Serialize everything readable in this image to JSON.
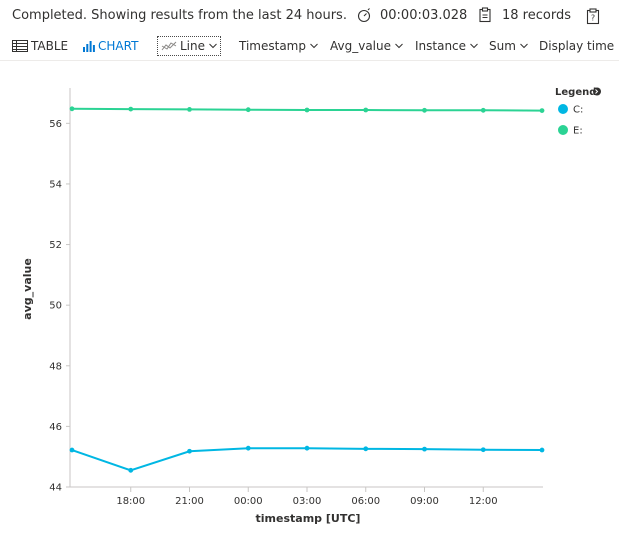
{
  "status": {
    "message": "Completed. Showing results from the last 24 hours.",
    "duration": "00:00:03.028",
    "records": "18 records",
    "timer_icon": "stopwatch-icon",
    "records_icon": "clipboard-icon",
    "copy_icon": "clipboard-copy-icon"
  },
  "toolbar": {
    "table_label": "TABLE",
    "chart_label": "CHART",
    "chart_type": "Line",
    "x_column": "Timestamp",
    "y_column": "Avg_value",
    "split_by": "Instance",
    "aggregation": "Sum",
    "display_time": "Display time",
    "accent_color": "#0078d4"
  },
  "chart_data": {
    "type": "line",
    "xlabel": "timestamp [UTC]",
    "ylabel": "avg_value",
    "x_ticks": [
      "18:00",
      "21:00",
      "00:00",
      "03:00",
      "06:00",
      "09:00",
      "12:00"
    ],
    "y_ticks": [
      44,
      46,
      48,
      50,
      52,
      54,
      56
    ],
    "ylim": [
      44,
      57.1
    ],
    "x": [
      "15:00",
      "18:00",
      "21:00",
      "00:00",
      "03:00",
      "06:00",
      "09:00",
      "12:00",
      "15:00"
    ],
    "legend_title": "Legend",
    "legend_position": "top-right",
    "grid": false,
    "series": [
      {
        "name": "C:",
        "color": "#00b7e3",
        "values": [
          45.22,
          44.55,
          45.18,
          45.28,
          45.28,
          45.26,
          45.25,
          45.23,
          45.22
        ]
      },
      {
        "name": "E:",
        "color": "#2bd394",
        "values": [
          56.48,
          56.47,
          56.46,
          56.45,
          56.44,
          56.44,
          56.43,
          56.43,
          56.42
        ]
      }
    ]
  }
}
